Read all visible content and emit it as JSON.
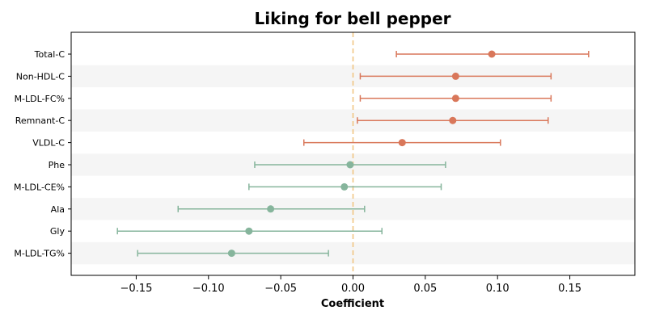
{
  "chart_data": {
    "type": "forest",
    "title": "Liking for bell pepper",
    "xlabel": "Coefficient",
    "ylabel": "",
    "xlim": [
      -0.195,
      0.195
    ],
    "xticks": [
      -0.15,
      -0.1,
      -0.05,
      0.0,
      0.05,
      0.1,
      0.15
    ],
    "xtick_labels": [
      "−0.15",
      "−0.10",
      "−0.05",
      "0.00",
      "0.05",
      "0.10",
      "0.15"
    ],
    "reference_line": 0,
    "grid": false,
    "colors": {
      "positive": "#d9775a",
      "negative": "#86b59c",
      "reference": "#f0c27b",
      "band": "#f5f5f5"
    },
    "items": [
      {
        "label": "Total-C",
        "estimate": 0.096,
        "ci_low": 0.03,
        "ci_high": 0.163
      },
      {
        "label": "Non-HDL-C",
        "estimate": 0.071,
        "ci_low": 0.005,
        "ci_high": 0.137
      },
      {
        "label": "M-LDL-FC%",
        "estimate": 0.071,
        "ci_low": 0.005,
        "ci_high": 0.137
      },
      {
        "label": "Remnant-C",
        "estimate": 0.069,
        "ci_low": 0.003,
        "ci_high": 0.135
      },
      {
        "label": "VLDL-C",
        "estimate": 0.034,
        "ci_low": -0.034,
        "ci_high": 0.102
      },
      {
        "label": "Phe",
        "estimate": -0.002,
        "ci_low": -0.068,
        "ci_high": 0.064
      },
      {
        "label": "M-LDL-CE%",
        "estimate": -0.006,
        "ci_low": -0.072,
        "ci_high": 0.061
      },
      {
        "label": "Ala",
        "estimate": -0.057,
        "ci_low": -0.121,
        "ci_high": 0.008
      },
      {
        "label": "Gly",
        "estimate": -0.072,
        "ci_low": -0.163,
        "ci_high": 0.02
      },
      {
        "label": "M-LDL-TG%",
        "estimate": -0.084,
        "ci_low": -0.149,
        "ci_high": -0.017
      }
    ]
  }
}
